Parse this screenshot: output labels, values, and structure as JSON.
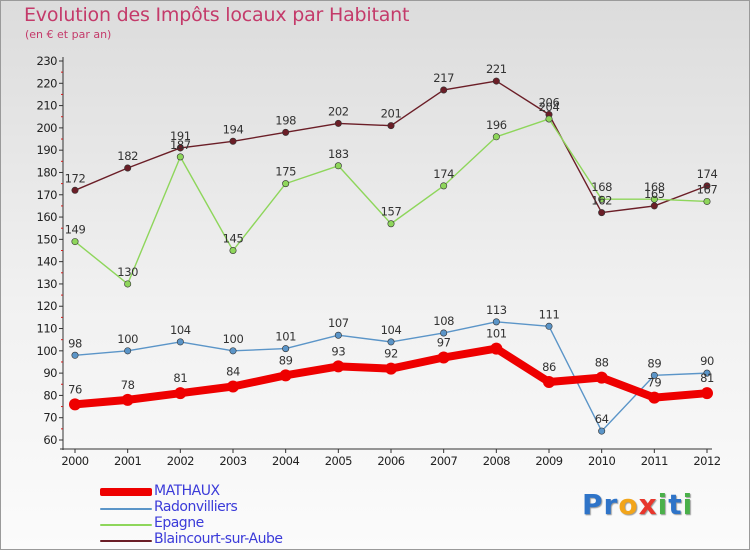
{
  "title": "Evolution des Impôts locaux par Habitant",
  "subtitle": "(en € et par an)",
  "logo": {
    "letters": [
      "P",
      "r",
      "o",
      "x",
      "i",
      "t",
      "i"
    ],
    "colors": [
      "#2f74c8",
      "#2f74c8",
      "#f2a51a",
      "#e8362c",
      "#4ab04a",
      "#2f74c8",
      "#4ab04a"
    ]
  },
  "chart_data": {
    "type": "line",
    "title": "Evolution des Impôts locaux par Habitant",
    "subtitle": "(en € et par an)",
    "xlabel": "",
    "ylabel": "",
    "ylim": [
      60,
      230
    ],
    "yticks": [
      60,
      70,
      80,
      90,
      100,
      110,
      120,
      130,
      140,
      150,
      160,
      170,
      180,
      190,
      200,
      210,
      220,
      230
    ],
    "grid": false,
    "legend_position": "bottom-left",
    "categories": [
      "2000",
      "2001",
      "2002",
      "2003",
      "2004",
      "2005",
      "2006",
      "2007",
      "2008",
      "2009",
      "2010",
      "2011",
      "2012"
    ],
    "series": [
      {
        "name": "MATHAUX",
        "color": "#ee0000",
        "values": [
          76,
          78,
          81,
          84,
          89,
          93,
          92,
          97,
          101,
          86,
          88,
          79,
          81
        ]
      },
      {
        "name": "Radonvilliers",
        "color": "#5b95c8",
        "values": [
          98,
          100,
          104,
          100,
          101,
          107,
          104,
          108,
          113,
          111,
          64,
          89,
          90
        ]
      },
      {
        "name": "Epagne",
        "color": "#8ed65b",
        "values": [
          149,
          130,
          187,
          145,
          175,
          183,
          157,
          174,
          196,
          204,
          168,
          168,
          167
        ]
      },
      {
        "name": "Blaincourt-sur-Aube",
        "color": "#6b1e27",
        "values": [
          172,
          182,
          191,
          194,
          198,
          202,
          201,
          217,
          221,
          206,
          162,
          165,
          174
        ]
      }
    ]
  }
}
